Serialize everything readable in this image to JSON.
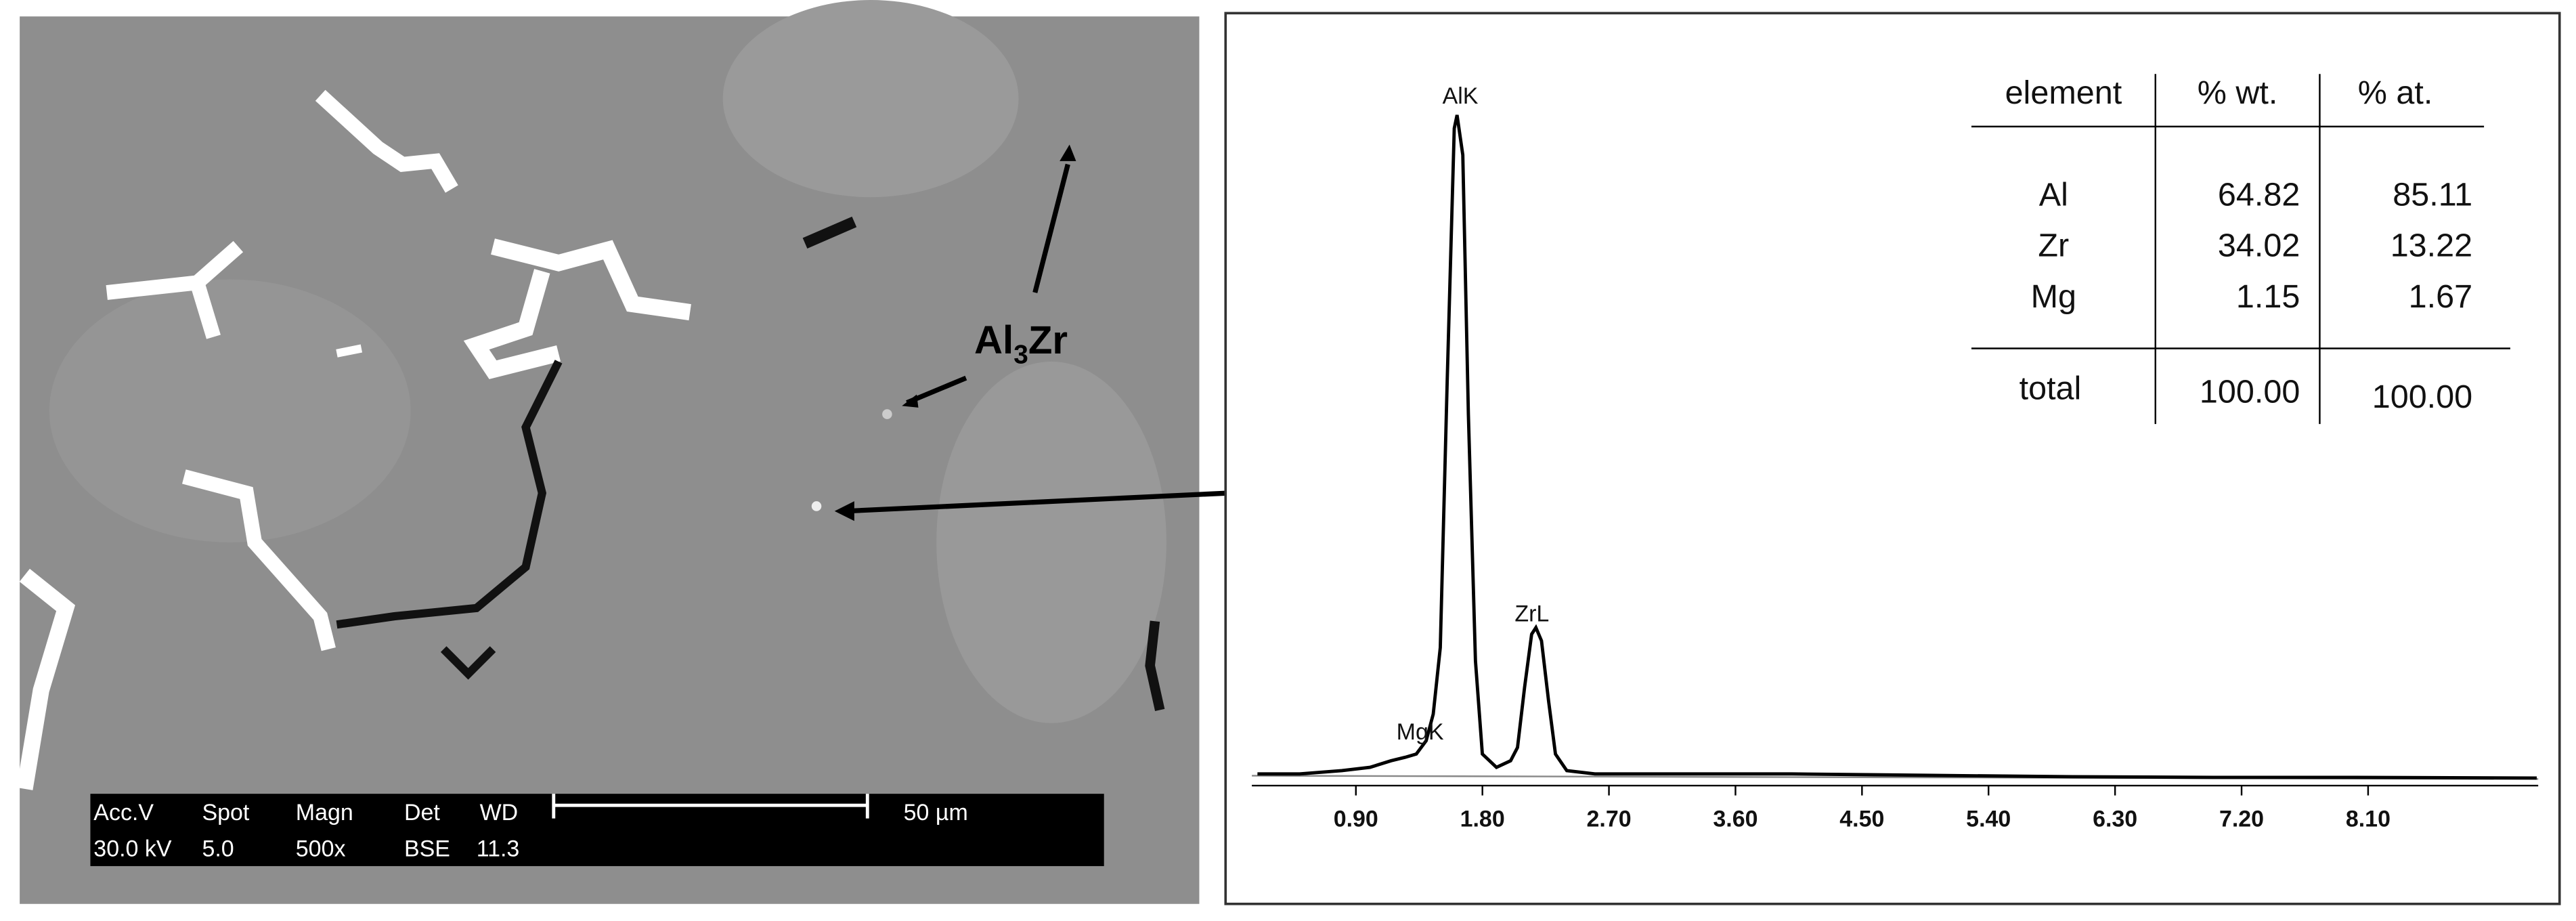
{
  "micrograph": {
    "label": {
      "main": "Al",
      "sub": "3",
      "rest": "Zr"
    },
    "scale_bar": {
      "row1": [
        "Acc.V",
        "Spot",
        "Magn",
        "Det",
        "WD"
      ],
      "row2": [
        "30.0 kV",
        "5.0",
        "500x",
        "BSE",
        "11.3"
      ],
      "length": "50 µm"
    }
  },
  "table": {
    "header": [
      "element",
      "% wt.",
      "% at."
    ],
    "rows": [
      [
        "Al",
        "64.82",
        "85.11"
      ],
      [
        "Zr",
        "34.02",
        "13.22"
      ],
      [
        "Mg",
        "1.15",
        "1.67"
      ]
    ],
    "total": [
      "total",
      "100.00",
      "100.00"
    ]
  },
  "chart_data": {
    "type": "line",
    "color": "#000000",
    "peak_labels": [
      "MgK",
      "AlK",
      "ZrL"
    ],
    "x": [
      0.2,
      0.5,
      0.8,
      1.0,
      1.15,
      1.25,
      1.33,
      1.4,
      1.45,
      1.5,
      1.55,
      1.6,
      1.62,
      1.66,
      1.7,
      1.75,
      1.8,
      1.9,
      2.0,
      2.05,
      2.1,
      2.15,
      2.18,
      2.22,
      2.27,
      2.32,
      2.4,
      2.6,
      3.0,
      4.0,
      5.0,
      6.0,
      7.0,
      8.0,
      9.3
    ],
    "values": [
      1,
      1,
      1.5,
      2,
      3,
      3.5,
      4,
      6,
      10,
      20,
      60,
      98,
      100,
      94,
      55,
      18,
      4,
      2,
      3,
      5,
      14,
      22,
      23,
      21,
      12,
      4,
      1.5,
      1,
      1,
      1,
      0.8,
      0.6,
      0.5,
      0.5,
      0.4
    ],
    "xlim": [
      0.16,
      9.31
    ],
    "ylim": [
      0,
      100
    ],
    "xticks": [
      {
        "value": 0.9,
        "label": "0.90"
      },
      {
        "value": 1.8,
        "label": "1.80"
      },
      {
        "value": 2.7,
        "label": "2.70"
      },
      {
        "value": 3.6,
        "label": "3.60"
      },
      {
        "value": 4.5,
        "label": "4.50"
      },
      {
        "value": 5.4,
        "label": "5.40"
      },
      {
        "value": 6.3,
        "label": "6.30"
      },
      {
        "value": 7.2,
        "label": "7.20"
      },
      {
        "value": 8.1,
        "label": "8.10"
      }
    ]
  }
}
